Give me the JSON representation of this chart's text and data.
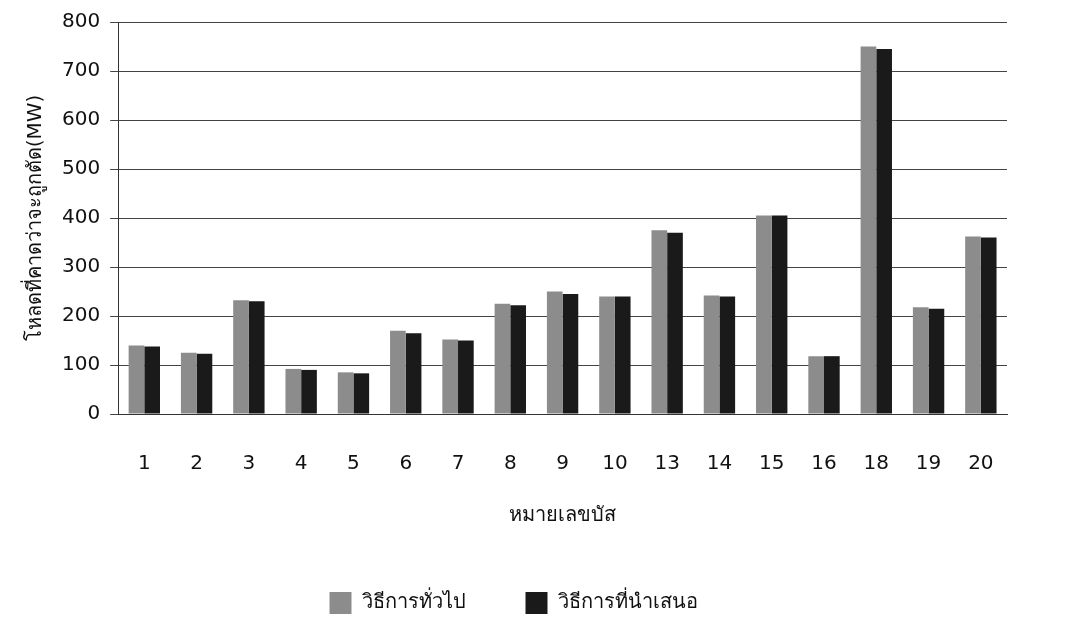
{
  "chart_data": {
    "type": "bar",
    "xlabel": "หมายเลขบัส",
    "ylabel": "โหลดที่คาดว่าจะถูกตัด(MW)",
    "categories": [
      "1",
      "2",
      "3",
      "4",
      "5",
      "6",
      "7",
      "8",
      "9",
      "10",
      "13",
      "14",
      "15",
      "16",
      "18",
      "19",
      "20"
    ],
    "series": [
      {
        "name": "วิธีการทั่วไป",
        "color": "#8c8c8c",
        "values": [
          140,
          125,
          232,
          92,
          85,
          170,
          152,
          225,
          250,
          240,
          375,
          242,
          405,
          118,
          750,
          218,
          362
        ]
      },
      {
        "name": "วิธีการที่นำเสนอ",
        "color": "#1a1a1a",
        "values": [
          138,
          123,
          230,
          90,
          83,
          165,
          150,
          222,
          245,
          240,
          370,
          240,
          405,
          118,
          745,
          215,
          360
        ]
      }
    ],
    "ylim": [
      0,
      800
    ],
    "yticks": [
      0,
      100,
      200,
      300,
      400,
      500,
      600,
      700,
      800
    ],
    "grid": "y",
    "legend": "bottom"
  }
}
